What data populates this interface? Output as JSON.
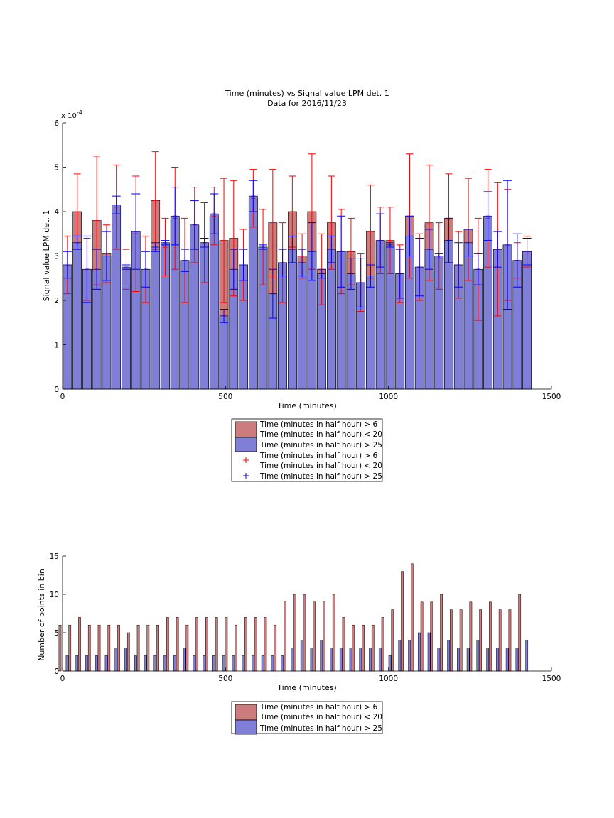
{
  "chart_data": [
    {
      "type": "bar",
      "title": "Time (minutes) vs Signal value LPM det. 1",
      "subtitle": "Data for 2016/11/23",
      "xlabel": "Time (minutes)",
      "ylabel": "Signal value LPM det. 1",
      "exponent_label": "x 10",
      "exponent_power": "-4",
      "xlim": [
        0,
        1500
      ],
      "ylim": [
        0,
        6
      ],
      "xticks": [
        "0",
        "500",
        "1000",
        "1500"
      ],
      "yticks": [
        "0",
        "1",
        "2",
        "3",
        "4",
        "5",
        "6"
      ],
      "grid": false,
      "legend_position": "below",
      "x": [
        15,
        45,
        75,
        105,
        135,
        165,
        195,
        225,
        255,
        285,
        315,
        345,
        375,
        405,
        435,
        465,
        495,
        525,
        555,
        585,
        615,
        645,
        675,
        705,
        735,
        765,
        795,
        825,
        855,
        885,
        915,
        945,
        975,
        1005,
        1035,
        1065,
        1095,
        1125,
        1155,
        1185,
        1215,
        1245,
        1275,
        1305,
        1335,
        1365,
        1395,
        1425
      ],
      "series": [
        {
          "name": "Time (minutes in half hour) > 6\nTime (minutes in half hour) < 20",
          "color": "#cc7c7c",
          "errorbar_color": "#ff0000",
          "values": [
            2.8,
            4.0,
            2.7,
            3.8,
            3.05,
            4.1,
            2.7,
            3.5,
            2.7,
            4.25,
            3.2,
            3.85,
            2.9,
            3.7,
            3.3,
            3.9,
            3.35,
            3.4,
            2.8,
            4.3,
            3.2,
            3.75,
            2.85,
            4.0,
            3.0,
            4.0,
            2.7,
            3.75,
            3.1,
            3.1,
            2.4,
            3.55,
            3.35,
            3.35,
            2.6,
            3.9,
            2.75,
            3.75,
            3.0,
            3.85,
            2.8,
            3.6,
            2.7,
            3.85,
            3.15,
            3.25,
            2.9,
            3.1
          ],
          "errors": [
            0.65,
            0.85,
            0.7,
            1.45,
            0.65,
            0.95,
            0.45,
            1.3,
            0.75,
            1.1,
            0.65,
            1.15,
            0.95,
            0.85,
            0.9,
            0.65,
            1.4,
            1.3,
            0.8,
            0.65,
            0.85,
            1.2,
            0.9,
            0.8,
            0.5,
            1.3,
            0.8,
            1.05,
            0.95,
            0.75,
            0.65,
            1.05,
            0.75,
            0.75,
            0.65,
            1.4,
            0.75,
            1.3,
            0.75,
            1.0,
            0.75,
            1.15,
            1.15,
            1.1,
            1.5,
            1.25,
            0.4,
            0.35
          ]
        },
        {
          "name": "Time (minutes in half hour) > 25",
          "color": "#7f7fd8",
          "errorbar_color": "#0000ff",
          "values": [
            2.8,
            3.3,
            2.7,
            2.7,
            3.0,
            4.15,
            2.75,
            3.55,
            2.7,
            3.2,
            3.3,
            3.9,
            2.9,
            3.7,
            3.3,
            3.95,
            1.65,
            2.7,
            2.8,
            4.35,
            3.2,
            2.15,
            2.85,
            3.15,
            2.85,
            3.1,
            2.6,
            3.15,
            3.1,
            2.6,
            2.4,
            2.55,
            3.35,
            3.25,
            2.6,
            3.45,
            2.75,
            3.15,
            3.0,
            3.35,
            2.8,
            3.3,
            2.7,
            3.9,
            3.15,
            3.25,
            2.9,
            3.1
          ],
          "errors": [
            0.3,
            0.15,
            0.75,
            0.45,
            0.55,
            0.2,
            0.05,
            0.85,
            0.4,
            0.1,
            0.05,
            0.65,
            0.25,
            0.55,
            0.1,
            0.45,
            0.15,
            0.45,
            0.35,
            0.35,
            0.05,
            0.55,
            0.3,
            0.3,
            0.3,
            0.65,
            0.1,
            0.3,
            0.8,
            0.35,
            0.55,
            0.25,
            0.6,
            0.05,
            0.55,
            0.45,
            0.65,
            0.45,
            0.05,
            0.5,
            0.5,
            0.3,
            0.35,
            0.55,
            0.4,
            1.45,
            0.6,
            0.3
          ]
        }
      ]
    },
    {
      "type": "bar",
      "xlabel": "Time (minutes)",
      "ylabel": "Number of points in bin",
      "xlim": [
        0,
        1500
      ],
      "ylim": [
        0,
        15
      ],
      "xticks": [
        "0",
        "500",
        "1000",
        "1500"
      ],
      "yticks": [
        "0",
        "5",
        "10",
        "15"
      ],
      "grid": false,
      "legend_position": "below",
      "x": [
        15,
        45,
        75,
        105,
        135,
        165,
        195,
        225,
        255,
        285,
        315,
        345,
        375,
        405,
        435,
        465,
        495,
        525,
        555,
        585,
        615,
        645,
        675,
        705,
        735,
        765,
        795,
        825,
        855,
        885,
        915,
        945,
        975,
        1005,
        1035,
        1065,
        1095,
        1125,
        1155,
        1185,
        1215,
        1245,
        1275,
        1305,
        1335,
        1365,
        1395,
        1425
      ],
      "series": [
        {
          "name": "Time (minutes in half hour) > 6\nTime (minutes in half hour) < 20",
          "color": "#cc7c7c",
          "values": [
            6,
            6,
            7,
            6,
            6,
            6,
            6,
            5,
            6,
            6,
            6,
            7,
            7,
            6,
            7,
            7,
            7,
            7,
            6,
            7,
            7,
            7,
            6,
            9,
            10,
            10,
            9,
            9,
            10,
            7,
            6,
            6,
            6,
            7,
            8,
            13,
            14,
            9,
            9,
            10,
            8,
            8,
            9,
            8,
            9,
            8,
            8,
            10
          ]
        },
        {
          "name": "Time (minutes in half hour) > 25",
          "color": "#7f7fd8",
          "values": [
            2,
            2,
            2,
            2,
            2,
            3,
            3,
            2,
            2,
            2,
            2,
            2,
            3,
            2,
            2,
            2,
            2,
            2,
            2,
            2,
            2,
            2,
            2,
            3,
            4,
            3,
            4,
            3,
            3,
            3,
            3,
            3,
            3,
            2,
            4,
            4,
            5,
            5,
            3,
            4,
            3,
            3,
            4,
            3,
            3,
            3,
            3,
            4
          ]
        }
      ]
    }
  ]
}
